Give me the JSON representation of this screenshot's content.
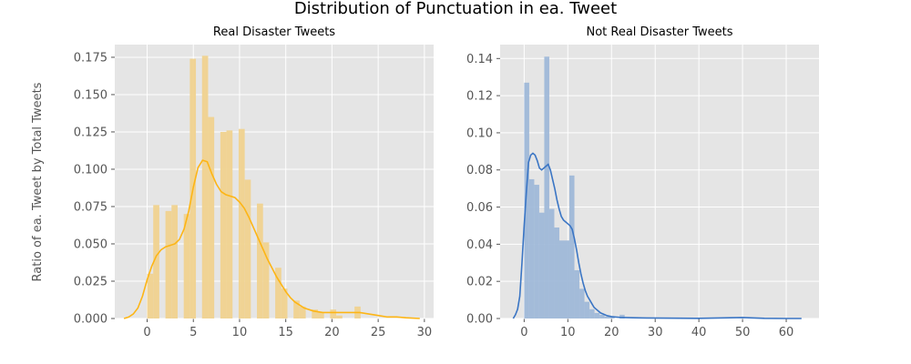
{
  "figure": {
    "title": "Distribution of Punctuation in ea. Tweet",
    "ylabel": "Ratio of ea. Tweet by Total Tweets"
  },
  "colors": {
    "background": "#e5e5e5",
    "grid": "#ffffff",
    "real_bar": "#f0d28f",
    "real_line": "#fdb515",
    "not_real_bar": "#9fb8d8",
    "not_real_line": "#3a75c4"
  },
  "chart_data": [
    {
      "type": "bar",
      "title": "Real Disaster Tweets",
      "xlim": [
        -3.5,
        31
      ],
      "ylim": [
        0,
        0.1835
      ],
      "xticks": [
        0,
        5,
        10,
        15,
        20,
        25,
        30
      ],
      "yticks": [
        0,
        0.025,
        0.05,
        0.075,
        0.1,
        0.125,
        0.15,
        0.175
      ],
      "ytick_labels": [
        "0.000",
        "0.025",
        "0.050",
        "0.075",
        "0.100",
        "0.125",
        "0.150",
        "0.175"
      ],
      "bar_width": 0.66,
      "x": [
        0.33,
        0.99,
        2.31,
        2.97,
        4.29,
        4.95,
        6.27,
        6.93,
        8.25,
        8.91,
        10.23,
        10.89,
        12.21,
        12.87,
        14.19,
        14.85,
        16.17,
        16.83,
        18.15,
        18.81,
        20.13,
        20.79,
        22.77
      ],
      "values": [
        0.03,
        0.076,
        0.072,
        0.076,
        0.07,
        0.174,
        0.176,
        0.135,
        0.125,
        0.126,
        0.127,
        0.093,
        0.077,
        0.051,
        0.034,
        0.02,
        0.012,
        0.008,
        0.006,
        0.004,
        0.006,
        0.002,
        0.008
      ],
      "kde": {
        "x": [
          -2.5,
          -2,
          -1.5,
          -1,
          -0.5,
          0,
          0.5,
          1,
          1.5,
          2,
          2.5,
          3,
          3.5,
          4,
          4.5,
          5,
          5.5,
          6,
          6.5,
          7,
          7.5,
          8,
          8.5,
          9,
          9.5,
          10,
          10.5,
          11,
          11.5,
          12,
          12.5,
          13,
          13.5,
          14,
          14.5,
          15,
          15.5,
          16,
          17,
          18,
          19,
          20,
          21,
          22,
          23,
          24,
          25,
          26,
          27,
          28,
          29.5
        ],
        "y": [
          0,
          0.001,
          0.003,
          0.007,
          0.015,
          0.026,
          0.035,
          0.042,
          0.046,
          0.048,
          0.049,
          0.05,
          0.053,
          0.06,
          0.072,
          0.088,
          0.101,
          0.106,
          0.105,
          0.097,
          0.09,
          0.085,
          0.083,
          0.082,
          0.081,
          0.078,
          0.074,
          0.068,
          0.061,
          0.054,
          0.047,
          0.04,
          0.034,
          0.028,
          0.023,
          0.018,
          0.014,
          0.011,
          0.007,
          0.005,
          0.004,
          0.004,
          0.004,
          0.004,
          0.004,
          0.003,
          0.002,
          0.001,
          0.001,
          0.0005,
          0
        ]
      }
    },
    {
      "type": "bar",
      "title": "Not Real Disaster Tweets",
      "xlim": [
        -5.5,
        67.5
      ],
      "ylim": [
        0,
        0.1475
      ],
      "xticks": [
        0,
        10,
        20,
        30,
        40,
        50,
        60
      ],
      "yticks": [
        0,
        0.02,
        0.04,
        0.06,
        0.08,
        0.1,
        0.12,
        0.14
      ],
      "ytick_labels": [
        "0.00",
        "0.02",
        "0.04",
        "0.06",
        "0.08",
        "0.10",
        "0.12",
        "0.14"
      ],
      "bar_width": 1.15,
      "x": [
        0.58,
        1.73,
        2.88,
        4.03,
        5.18,
        6.33,
        7.48,
        8.63,
        9.78,
        10.93,
        12.08,
        13.23,
        14.38,
        15.53,
        16.68,
        17.83,
        18.98,
        20.13,
        22.43
      ],
      "values": [
        0.127,
        0.075,
        0.072,
        0.057,
        0.141,
        0.059,
        0.049,
        0.042,
        0.042,
        0.077,
        0.026,
        0.016,
        0.009,
        0.005,
        0.003,
        0.002,
        0.001,
        0.001,
        0.002
      ],
      "kde": {
        "x": [
          -2.5,
          -2,
          -1.5,
          -1,
          -0.5,
          0,
          0.5,
          1,
          1.5,
          2,
          2.5,
          3,
          3.5,
          4,
          4.5,
          5,
          5.5,
          6,
          6.5,
          7,
          7.5,
          8,
          8.5,
          9,
          9.5,
          10,
          10.5,
          11,
          11.5,
          12,
          12.5,
          13,
          13.5,
          14,
          14.5,
          15,
          15.5,
          16,
          16.5,
          17,
          17.5,
          18,
          19,
          20,
          21,
          22,
          23,
          25,
          28,
          32,
          40,
          50,
          55,
          60,
          63.5
        ],
        "y": [
          0,
          0.002,
          0.005,
          0.012,
          0.03,
          0.05,
          0.068,
          0.084,
          0.088,
          0.089,
          0.088,
          0.085,
          0.081,
          0.08,
          0.081,
          0.082,
          0.083,
          0.08,
          0.075,
          0.07,
          0.064,
          0.059,
          0.055,
          0.053,
          0.052,
          0.051,
          0.05,
          0.048,
          0.043,
          0.037,
          0.03,
          0.024,
          0.019,
          0.015,
          0.012,
          0.01,
          0.008,
          0.006,
          0.005,
          0.004,
          0.003,
          0.0025,
          0.0015,
          0.001,
          0.0008,
          0.0006,
          0.0005,
          0.0004,
          0.0003,
          0.0002,
          0.0001,
          0.0005,
          0.0001,
          0,
          0
        ]
      }
    }
  ]
}
